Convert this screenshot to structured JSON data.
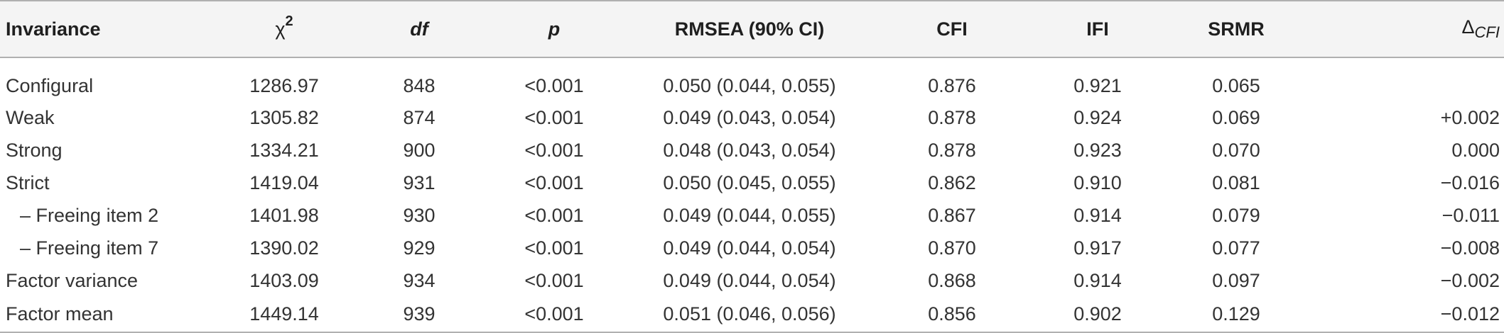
{
  "table": {
    "headers": {
      "invariance": "Invariance",
      "chi": "χ",
      "chi_sup": "2",
      "df": "df",
      "p": "p",
      "rmsea": "RMSEA (90% CI)",
      "cfi": "CFI",
      "ifi": "IFI",
      "srmr": "SRMR",
      "delta": "Δ",
      "delta_sub": "CFI"
    },
    "rows": [
      {
        "label": "Configural",
        "chi2": "1286.97",
        "df": "848",
        "p": "<0.001",
        "rmsea": "0.050 (0.044, 0.055)",
        "cfi": "0.876",
        "ifi": "0.921",
        "srmr": "0.065",
        "delta": ""
      },
      {
        "label": "Weak",
        "chi2": "1305.82",
        "df": "874",
        "p": "<0.001",
        "rmsea": "0.049 (0.043, 0.054)",
        "cfi": "0.878",
        "ifi": "0.924",
        "srmr": "0.069",
        "delta": "+0.002"
      },
      {
        "label": "Strong",
        "chi2": "1334.21",
        "df": "900",
        "p": "<0.001",
        "rmsea": "0.048 (0.043, 0.054)",
        "cfi": "0.878",
        "ifi": "0.923",
        "srmr": "0.070",
        "delta": "0.000"
      },
      {
        "label": "Strict",
        "chi2": "1419.04",
        "df": "931",
        "p": "<0.001",
        "rmsea": "0.050 (0.045, 0.055)",
        "cfi": "0.862",
        "ifi": "0.910",
        "srmr": "0.081",
        "delta": "−0.016"
      },
      {
        "label": "– Freeing item 2",
        "chi2": "1401.98",
        "df": "930",
        "p": "<0.001",
        "rmsea": "0.049 (0.044, 0.055)",
        "cfi": "0.867",
        "ifi": "0.914",
        "srmr": "0.079",
        "delta": "−0.011"
      },
      {
        "label": "– Freeing item 7",
        "chi2": "1390.02",
        "df": "929",
        "p": "<0.001",
        "rmsea": "0.049 (0.044, 0.054)",
        "cfi": "0.870",
        "ifi": "0.917",
        "srmr": "0.077",
        "delta": "−0.008"
      },
      {
        "label": "Factor variance",
        "chi2": "1403.09",
        "df": "934",
        "p": "<0.001",
        "rmsea": "0.049 (0.044, 0.054)",
        "cfi": "0.868",
        "ifi": "0.914",
        "srmr": "0.097",
        "delta": "−0.002"
      },
      {
        "label": "Factor mean",
        "chi2": "1449.14",
        "df": "939",
        "p": "<0.001",
        "rmsea": "0.051 (0.046, 0.056)",
        "cfi": "0.856",
        "ifi": "0.902",
        "srmr": "0.129",
        "delta": "−0.012"
      }
    ]
  }
}
